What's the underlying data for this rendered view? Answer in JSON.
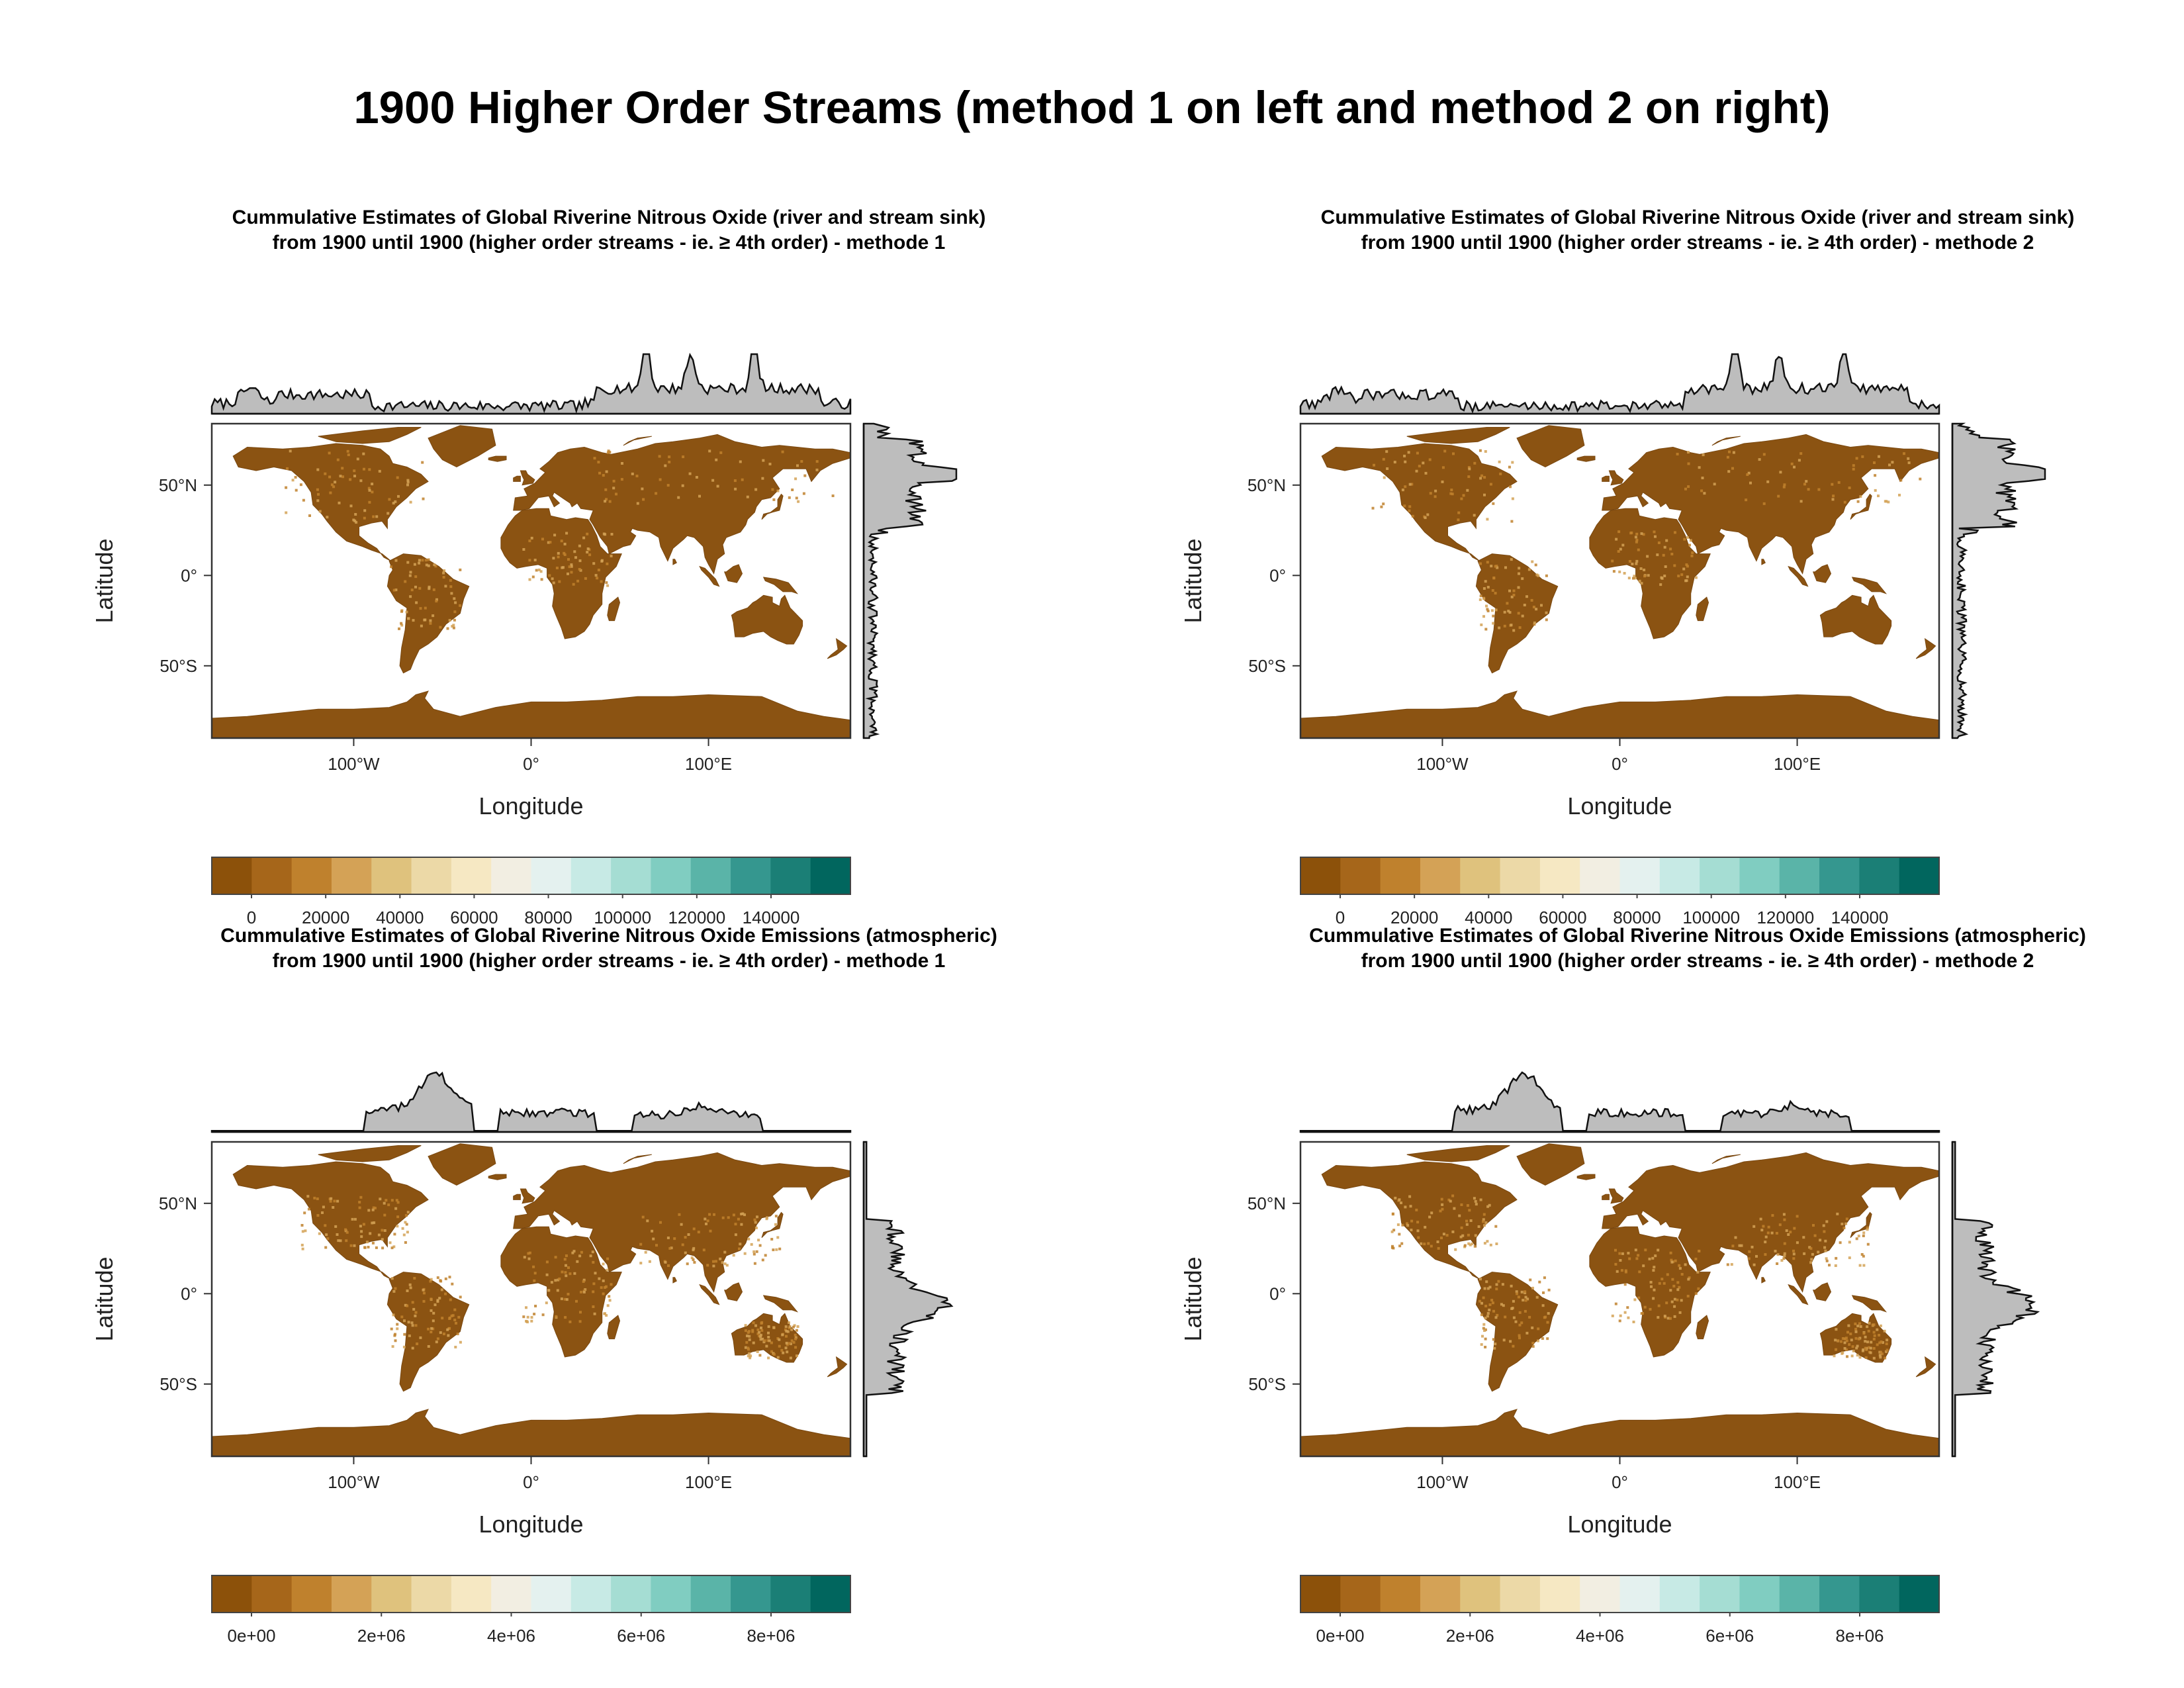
{
  "page": {
    "title": "1900 Higher Order Streams (method 1 on left and method 2 on right)"
  },
  "colors": {
    "land": "#8b5312",
    "land_light": "#a86b1f",
    "marginal_fill": "#bdbdbd",
    "marginal_line": "#111111",
    "palette": [
      "#8c510a",
      "#a6661a",
      "#bf812d",
      "#d4a256",
      "#dfc27d",
      "#ecd9a7",
      "#f6e8c3",
      "#f2eee2",
      "#e4f1ef",
      "#c7eae5",
      "#a5ddd3",
      "#80cdc1",
      "#5ab4a8",
      "#35978f",
      "#1b7f76",
      "#01665e"
    ]
  },
  "map_axes": {
    "xlabel": "Longitude",
    "ylabel": "Latitude",
    "x_ticks": [
      "100°W",
      "0°",
      "100°E"
    ],
    "y_ticks": [
      "50°N",
      "0°",
      "50°S"
    ]
  },
  "panels": [
    {
      "id": "sink-m1",
      "title_line1": "Cummulative Estimates of Global Riverine Nitrous Oxide (river and stream sink)",
      "title_line2": "from 1900 until 1900 (higher order streams - ie. ≥ 4th order) - methode 1",
      "colorbar_labels": [
        "0",
        "20000",
        "40000",
        "60000",
        "80000",
        "100000",
        "120000",
        "140000"
      ],
      "top_profile": "sink",
      "right_profile": "sink"
    },
    {
      "id": "sink-m2",
      "title_line1": "Cummulative Estimates of Global Riverine Nitrous Oxide (river and stream sink)",
      "title_line2": "from 1900 until 1900 (higher order streams - ie. ≥ 4th order) - methode 2",
      "colorbar_labels": [
        "0",
        "20000",
        "40000",
        "60000",
        "80000",
        "100000",
        "120000",
        "140000"
      ],
      "top_profile": "sink",
      "right_profile": "sink"
    },
    {
      "id": "emis-m1",
      "title_line1": "Cummulative Estimates of Global Riverine Nitrous Oxide Emissions (atmospheric)",
      "title_line2": "from 1900 until 1900 (higher order streams - ie. ≥ 4th order) - methode 1",
      "colorbar_labels": [
        "0e+00",
        "2e+06",
        "4e+06",
        "6e+06",
        "8e+06"
      ],
      "top_profile": "emission",
      "right_profile": "emission"
    },
    {
      "id": "emis-m2",
      "title_line1": "Cummulative Estimates of Global Riverine Nitrous Oxide Emissions (atmospheric)",
      "title_line2": "from 1900 until 1900 (higher order streams - ie. ≥ 4th order) - methode 2",
      "colorbar_labels": [
        "0e+00",
        "2e+06",
        "4e+06",
        "6e+06",
        "8e+06"
      ],
      "top_profile": "emission",
      "right_profile": "emission"
    }
  ]
}
